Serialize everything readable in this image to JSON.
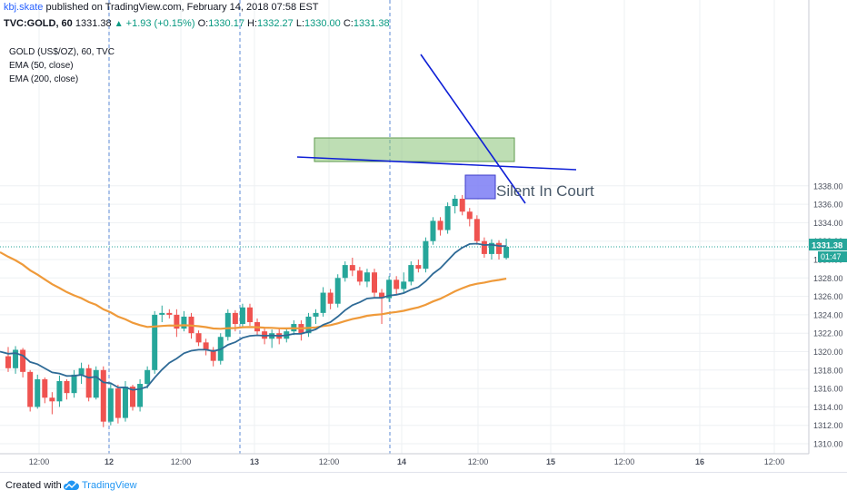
{
  "header": {
    "author": "kbj.skate",
    "published_text": "published on TradingView.com, February 14, 2018 07:58 EST"
  },
  "ohlc": {
    "symbol": "TVC:GOLD, 60",
    "last": "1331.38",
    "arrow": "▲",
    "change": "+1.93 (+0.15%)",
    "open_label": "O:",
    "open": "1330.17",
    "high_label": "H:",
    "high": "1332.27",
    "low_label": "L:",
    "low": "1330.00",
    "close_label": "C:",
    "close": "1331.38"
  },
  "legend": {
    "instrument": "GOLD (US$/OZ), 60, TVC",
    "ema50": "EMA (50, close)",
    "ema200": "EMA (200, close)"
  },
  "footer": {
    "created_with": "Created with",
    "brand": "TradingView"
  },
  "colors": {
    "up": "#26a69a",
    "down": "#ef5350",
    "ema50": "#2e6a96",
    "ema200": "#ef9a3a",
    "trendline": "#0e1fd6",
    "zone": "#88c277",
    "note_box": "#7b7cf5",
    "grid": "#eef0f3",
    "session_line": "#5b8ad4"
  },
  "chart_data": {
    "type": "candlestick",
    "xlabels": [
      "12:00",
      "12",
      "12:00",
      "13",
      "12:00",
      "14",
      "12:00",
      "15",
      "12:00",
      "16",
      "12:00"
    ],
    "y_ticks": [
      "1310.00",
      "1312.00",
      "1314.00",
      "1316.00",
      "1318.00",
      "1320.00",
      "1322.00",
      "1324.00",
      "1326.00",
      "1328.00",
      "1330.00",
      "1332.00",
      "1334.00",
      "1336.00",
      "1338.00"
    ],
    "ylim": [
      1309.5,
      1338.8
    ],
    "last_price_label": "1331.38",
    "countdown_label": "01:47",
    "candles": [
      [
        1319.5,
        1320.5,
        1317.8,
        1318.2
      ],
      [
        1318.2,
        1320.6,
        1317.6,
        1320.2
      ],
      [
        1320.2,
        1320.4,
        1317.2,
        1317.8
      ],
      [
        1317.8,
        1318.0,
        1313.5,
        1314.0
      ],
      [
        1314.0,
        1317.5,
        1313.8,
        1317.0
      ],
      [
        1317.0,
        1317.2,
        1314.4,
        1315.0
      ],
      [
        1315.0,
        1315.6,
        1313.2,
        1314.6
      ],
      [
        1314.6,
        1317.4,
        1314.0,
        1316.8
      ],
      [
        1316.8,
        1317.0,
        1314.8,
        1315.5
      ],
      [
        1315.5,
        1318.0,
        1315.0,
        1317.5
      ],
      [
        1317.5,
        1318.8,
        1316.5,
        1318.2
      ],
      [
        1318.2,
        1318.6,
        1314.6,
        1315.0
      ],
      [
        1315.0,
        1318.4,
        1314.8,
        1318.0
      ],
      [
        1318.0,
        1318.4,
        1311.8,
        1312.4
      ],
      [
        1312.4,
        1316.6,
        1312.0,
        1316.0
      ],
      [
        1316.0,
        1316.4,
        1312.2,
        1312.8
      ],
      [
        1312.8,
        1316.8,
        1312.4,
        1316.2
      ],
      [
        1316.2,
        1316.4,
        1313.6,
        1314.0
      ],
      [
        1314.0,
        1317.0,
        1313.5,
        1316.5
      ],
      [
        1316.5,
        1318.4,
        1316.0,
        1318.0
      ],
      [
        1318.0,
        1324.4,
        1317.6,
        1324.0
      ],
      [
        1324.0,
        1325.0,
        1323.2,
        1324.2
      ],
      [
        1324.2,
        1324.6,
        1323.6,
        1324.0
      ],
      [
        1324.0,
        1324.6,
        1321.6,
        1322.5
      ],
      [
        1322.5,
        1324.4,
        1322.2,
        1323.8
      ],
      [
        1323.8,
        1324.2,
        1321.4,
        1322.0
      ],
      [
        1322.0,
        1322.3,
        1320.6,
        1321.0
      ],
      [
        1321.0,
        1321.4,
        1319.6,
        1320.2
      ],
      [
        1320.2,
        1320.5,
        1318.4,
        1319.0
      ],
      [
        1319.0,
        1322.0,
        1318.6,
        1321.6
      ],
      [
        1321.6,
        1324.6,
        1321.2,
        1324.2
      ],
      [
        1324.2,
        1324.5,
        1322.2,
        1323.0
      ],
      [
        1323.0,
        1325.2,
        1322.6,
        1324.8
      ],
      [
        1324.8,
        1325.2,
        1322.8,
        1323.2
      ],
      [
        1323.2,
        1323.6,
        1321.8,
        1322.2
      ],
      [
        1322.2,
        1322.6,
        1320.8,
        1321.4
      ],
      [
        1321.4,
        1322.4,
        1320.4,
        1322.0
      ],
      [
        1322.0,
        1322.5,
        1320.8,
        1321.4
      ],
      [
        1321.4,
        1322.6,
        1321.0,
        1322.2
      ],
      [
        1322.2,
        1323.4,
        1321.8,
        1323.0
      ],
      [
        1323.0,
        1323.4,
        1321.2,
        1322.0
      ],
      [
        1322.0,
        1324.2,
        1321.6,
        1323.8
      ],
      [
        1323.8,
        1324.6,
        1323.0,
        1324.2
      ],
      [
        1324.2,
        1327.0,
        1323.8,
        1326.4
      ],
      [
        1326.4,
        1326.8,
        1324.6,
        1325.2
      ],
      [
        1325.2,
        1328.4,
        1324.8,
        1328.0
      ],
      [
        1328.0,
        1329.8,
        1327.6,
        1329.4
      ],
      [
        1329.4,
        1330.2,
        1328.2,
        1328.8
      ],
      [
        1328.8,
        1329.2,
        1327.2,
        1327.6
      ],
      [
        1327.6,
        1329.0,
        1327.0,
        1328.6
      ],
      [
        1328.6,
        1329.0,
        1325.8,
        1326.4
      ],
      [
        1326.4,
        1326.8,
        1323.0,
        1325.8
      ],
      [
        1325.8,
        1328.2,
        1325.4,
        1327.8
      ],
      [
        1327.8,
        1328.2,
        1326.2,
        1326.8
      ],
      [
        1326.8,
        1328.6,
        1326.4,
        1327.6
      ],
      [
        1327.6,
        1329.8,
        1327.2,
        1329.4
      ],
      [
        1329.4,
        1330.0,
        1328.6,
        1329.0
      ],
      [
        1329.0,
        1332.4,
        1328.6,
        1332.0
      ],
      [
        1332.0,
        1334.6,
        1331.6,
        1334.2
      ],
      [
        1334.2,
        1334.6,
        1332.6,
        1333.2
      ],
      [
        1333.2,
        1336.2,
        1332.8,
        1335.8
      ],
      [
        1335.8,
        1337.0,
        1335.0,
        1336.6
      ],
      [
        1336.6,
        1337.0,
        1334.8,
        1335.2
      ],
      [
        1335.2,
        1335.6,
        1333.6,
        1334.4
      ],
      [
        1334.4,
        1334.8,
        1331.6,
        1332.0
      ],
      [
        1332.0,
        1332.4,
        1330.2,
        1330.6
      ],
      [
        1330.6,
        1332.2,
        1330.0,
        1331.8
      ],
      [
        1331.8,
        1332.1,
        1330.0,
        1330.6
      ],
      [
        1330.17,
        1332.27,
        1330.0,
        1331.38
      ]
    ],
    "annotation_text": "Silent In Court"
  }
}
